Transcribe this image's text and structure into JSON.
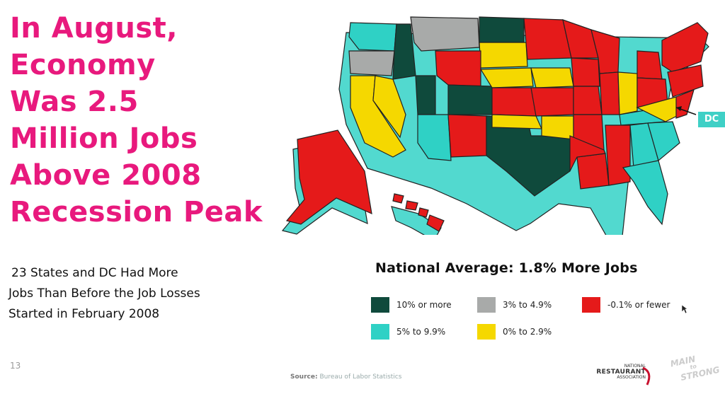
{
  "slide": {
    "title_lines": [
      "In August,",
      "Economy",
      "Was 2.5",
      "Million Jobs",
      "Above 2008",
      "Recession Peak"
    ],
    "subtitle_lines": [
      "23 States and DC Had More",
      "Jobs Than Before the Job Losses",
      "Started in February 2008"
    ],
    "page_number": "13"
  },
  "map": {
    "dc_label": "DC",
    "national_average": "National Average: 1.8% More Jobs",
    "legend": [
      {
        "label": "10% or more",
        "color": "#0f4a3c"
      },
      {
        "label": "3% to 4.9%",
        "color": "#a8aaa9"
      },
      {
        "label": "-0.1% or fewer",
        "color": "#e51a1a"
      },
      {
        "label": "5% to 9.9%",
        "color": "#2fd1c5"
      },
      {
        "label": "0% to 2.9%",
        "color": "#f5d800"
      }
    ]
  },
  "footer": {
    "source_label": "Source:",
    "source_text": "Bureau of Labor Statistics",
    "nra_line1": "NATIONAL",
    "nra_line2": "RESTAURANT",
    "nra_line3": "ASSOCIATION",
    "brand_line1": "MAIN",
    "brand_line2": "to",
    "brand_line3": "STRONG"
  }
}
